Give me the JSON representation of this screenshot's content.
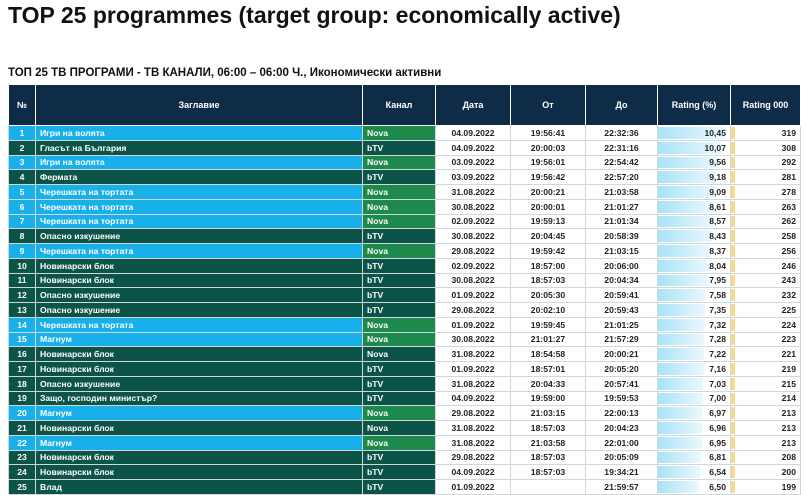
{
  "header": {
    "title": "TOP 25 programmes (target group: economically active)",
    "subtitle": "ТОП 25 ТВ ПРОГРАМИ - ТВ КАНАЛИ, 06:00 – 06:00 Ч., Икономически активни"
  },
  "table": {
    "columns": [
      "№",
      "Заглавие",
      "Канал",
      "Дата",
      "От",
      "До",
      "Rating (%)",
      "Rating 000"
    ],
    "rows": [
      [
        "1",
        "Игри на волята",
        "Nova",
        "04.09.2022",
        "19:56:41",
        "22:32:36",
        "10,45",
        "319"
      ],
      [
        "2",
        "Гласът на България",
        "bTV",
        "04.09.2022",
        "20:00:03",
        "22:31:16",
        "10,07",
        "308"
      ],
      [
        "3",
        "Игри на волята",
        "Nova",
        "03.09.2022",
        "19:56:01",
        "22:54:42",
        "9,56",
        "292"
      ],
      [
        "4",
        "Фермата",
        "bTV",
        "03.09.2022",
        "19:56:42",
        "22:57:20",
        "9,18",
        "281"
      ],
      [
        "5",
        "Черешката на тортата",
        "Nova",
        "31.08.2022",
        "20:00:21",
        "21:03:58",
        "9,09",
        "278"
      ],
      [
        "6",
        "Черешката на тортата",
        "Nova",
        "30.08.2022",
        "20:00:01",
        "21:01:27",
        "8,61",
        "263"
      ],
      [
        "7",
        "Черешката на тортата",
        "Nova",
        "02.09.2022",
        "19:59:13",
        "21:01:34",
        "8,57",
        "262"
      ],
      [
        "8",
        "Опасно изкушение",
        "bTV",
        "30.08.2022",
        "20:04:45",
        "20:58:39",
        "8,43",
        "258"
      ],
      [
        "9",
        "Черешката на тортата",
        "Nova",
        "29.08.2022",
        "19:59:42",
        "21:03:15",
        "8,37",
        "256"
      ],
      [
        "10",
        "Новинарски блок",
        "bTV",
        "02.09.2022",
        "18:57:00",
        "20:06:00",
        "8,04",
        "246"
      ],
      [
        "11",
        "Новинарски блок",
        "bTV",
        "30.08.2022",
        "18:57:03",
        "20:04:34",
        "7,95",
        "243"
      ],
      [
        "12",
        "Опасно изкушение",
        "bTV",
        "01.09.2022",
        "20:05:30",
        "20:59:41",
        "7,58",
        "232"
      ],
      [
        "13",
        "Опасно изкушение",
        "bTV",
        "29.08.2022",
        "20:02:10",
        "20:59:43",
        "7,35",
        "225"
      ],
      [
        "14",
        "Черешката на тортата",
        "Nova",
        "01.09.2022",
        "19:59:45",
        "21:01:25",
        "7,32",
        "224"
      ],
      [
        "15",
        "Магнум",
        "Nova",
        "30.08.2022",
        "21:01:27",
        "21:57:29",
        "7,28",
        "223"
      ],
      [
        "16",
        "Новинарски блок",
        "Nova",
        "31.08.2022",
        "18:54:58",
        "20:00:21",
        "7,22",
        "221"
      ],
      [
        "17",
        "Новинарски блок",
        "bTV",
        "01.09.2022",
        "18:57:01",
        "20:05:20",
        "7,16",
        "219"
      ],
      [
        "18",
        "Опасно изкушение",
        "bTV",
        "31.08.2022",
        "20:04:33",
        "20:57:41",
        "7,03",
        "215"
      ],
      [
        "19",
        "Защо, господин министър?",
        "bTV",
        "04.09.2022",
        "19:59:00",
        "19:59:53",
        "7,00",
        "214"
      ],
      [
        "20",
        "Магнум",
        "Nova",
        "29.08.2022",
        "21:03:15",
        "22:00:13",
        "6,97",
        "213"
      ],
      [
        "21",
        "Новинарски блок",
        "Nova",
        "31.08.2022",
        "18:57:03",
        "20:04:23",
        "6,96",
        "213"
      ],
      [
        "22",
        "Магнум",
        "Nova",
        "31.08.2022",
        "21:03:58",
        "22:01:00",
        "6,95",
        "213"
      ],
      [
        "23",
        "Новинарски блок",
        "bTV",
        "29.08.2022",
        "18:57:03",
        "20:05:09",
        "6,81",
        "208"
      ],
      [
        "24",
        "Новинарски блок",
        "bTV",
        "04.09.2022",
        "18:57:03",
        "19:34:21",
        "6,54",
        "200"
      ],
      [
        "25",
        "Влад",
        "bTV",
        "01.09.2022",
        null,
        "21:59:57",
        "6,50",
        "199"
      ]
    ]
  }
}
